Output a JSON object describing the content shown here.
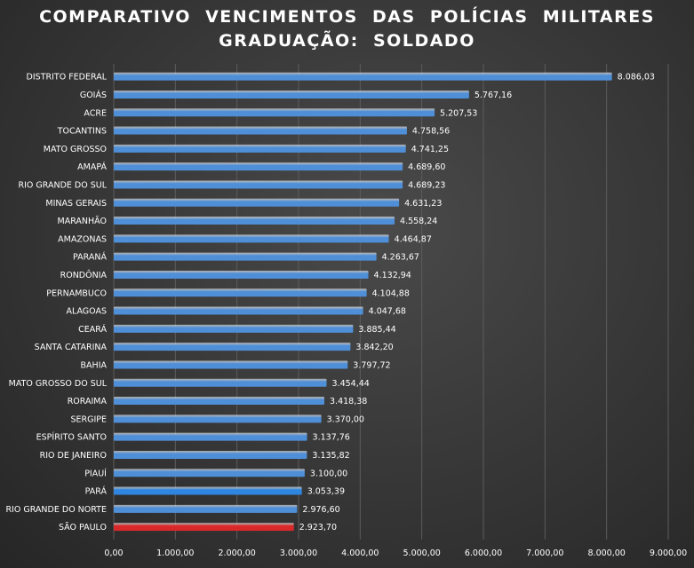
{
  "chart_data": {
    "type": "bar",
    "orientation": "horizontal",
    "title_line1": "COMPARATIVO  VENCIMENTOS  DAS  POLÍCIAS  MILITARES",
    "title_line2": "GRADUAÇÃO:  SOLDADO",
    "xlabel": "",
    "ylabel": "",
    "xlim": [
      0,
      9000
    ],
    "grid": true,
    "legend": "none",
    "categories": [
      "DISTRITO FEDERAL",
      "GOIÁS",
      "ACRE",
      "TOCANTINS",
      "MATO GROSSO",
      "AMAPÁ",
      "RIO GRANDE DO SUL",
      "MINAS GERAIS",
      "MARANHÃO",
      "AMAZONAS",
      "PARANÁ",
      "RONDÔNIA",
      "PERNAMBUCO",
      "ALAGOAS",
      "CEARÁ",
      "SANTA CATARINA",
      "BAHIA",
      "MATO GROSSO DO SUL",
      "RORAIMA",
      "SERGIPE",
      "ESPÍRITO SANTO",
      "RIO DE JANEIRO",
      "PIAUÍ",
      "PARÁ",
      "RIO GRANDE DO NORTE",
      "SÃO PAULO"
    ],
    "values": [
      8086.03,
      5767.16,
      5207.53,
      4758.56,
      4741.25,
      4689.6,
      4689.23,
      4631.23,
      4558.24,
      4464.87,
      4263.67,
      4132.94,
      4104.88,
      4047.68,
      3885.44,
      3842.2,
      3797.72,
      3454.44,
      3418.38,
      3370.0,
      3137.76,
      3135.82,
      3100.0,
      3053.39,
      2976.6,
      2923.7
    ],
    "value_labels": [
      "8.086,03",
      "5.767,16",
      "5.207,53",
      "4.758,56",
      "4.741,25",
      "4.689,60",
      "4.689,23",
      "4.631,23",
      "4.558,24",
      "4.464,87",
      "4.263,67",
      "4.132,94",
      "4.104,88",
      "4.047,68",
      "3.885,44",
      "3.842,20",
      "3.797,72",
      "3.454,44",
      "3.418,38",
      "3.370,00",
      "3.137,76",
      "3.135,82",
      "3.100,00",
      "3.053,39",
      "2.976,60",
      "2.923,70"
    ],
    "bar_colors": [
      "#4f8fd8",
      "#4f8fd8",
      "#4f8fd8",
      "#4f8fd8",
      "#4f8fd8",
      "#4f8fd8",
      "#4f8fd8",
      "#4f8fd8",
      "#4f8fd8",
      "#4f8fd8",
      "#4f8fd8",
      "#4f8fd8",
      "#4f8fd8",
      "#4f8fd8",
      "#4f8fd8",
      "#4f8fd8",
      "#4f8fd8",
      "#4f8fd8",
      "#4f8fd8",
      "#4f8fd8",
      "#4f8fd8",
      "#4f8fd8",
      "#4f8fd8",
      "#2f86e0",
      "#4f8fd8",
      "#d8282a"
    ],
    "x_ticks": [
      0,
      1000,
      2000,
      3000,
      4000,
      5000,
      6000,
      7000,
      8000,
      9000
    ],
    "x_tick_labels": [
      "0,00",
      "1.000,00",
      "2.000,00",
      "3.000,00",
      "4.000,00",
      "5.000,00",
      "6.000,00",
      "7.000,00",
      "8.000,00",
      "9.000,00"
    ],
    "colors": {
      "default_bar": "#4f8fd8",
      "highlight_bar": "#d8282a",
      "gridline": "#5c5c5c",
      "text": "#ffffff"
    }
  }
}
